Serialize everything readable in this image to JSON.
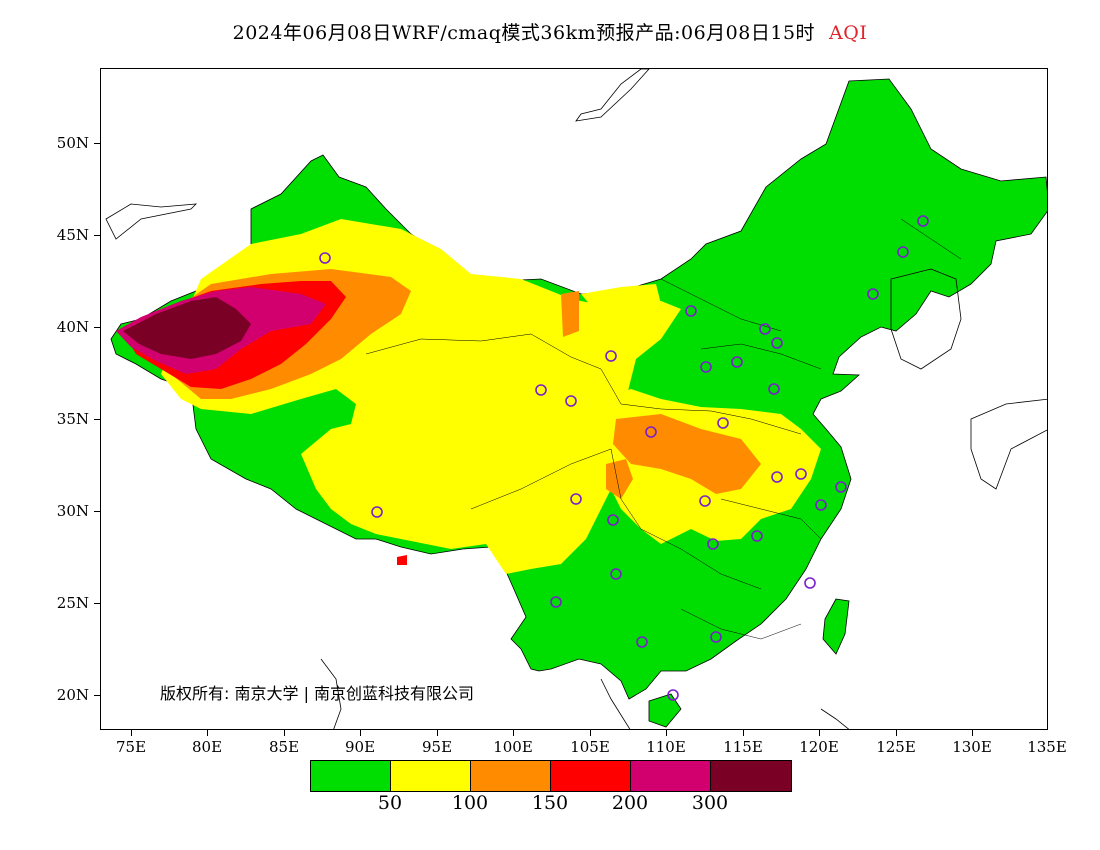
{
  "title": {
    "main": "2024年06月08日WRF/cmaq模式36km预报产品:06月08日15时",
    "product": "AQI"
  },
  "lat_labels": [
    "50N",
    "45N",
    "40N",
    "35N",
    "30N",
    "25N",
    "20N"
  ],
  "lon_labels": [
    "75E",
    "80E",
    "85E",
    "90E",
    "95E",
    "100E",
    "105E",
    "110E",
    "115E",
    "120E",
    "125E",
    "130E",
    "135E"
  ],
  "copyright": "版权所有: 南京大学 | 南京创蓝科技有限公司",
  "legend": {
    "colors": [
      "#00dd00",
      "#ffff00",
      "#ff8c00",
      "#ff0000",
      "#d2006f",
      "#7a0026"
    ],
    "labels": [
      "50",
      "100",
      "150",
      "200",
      "300"
    ]
  }
}
